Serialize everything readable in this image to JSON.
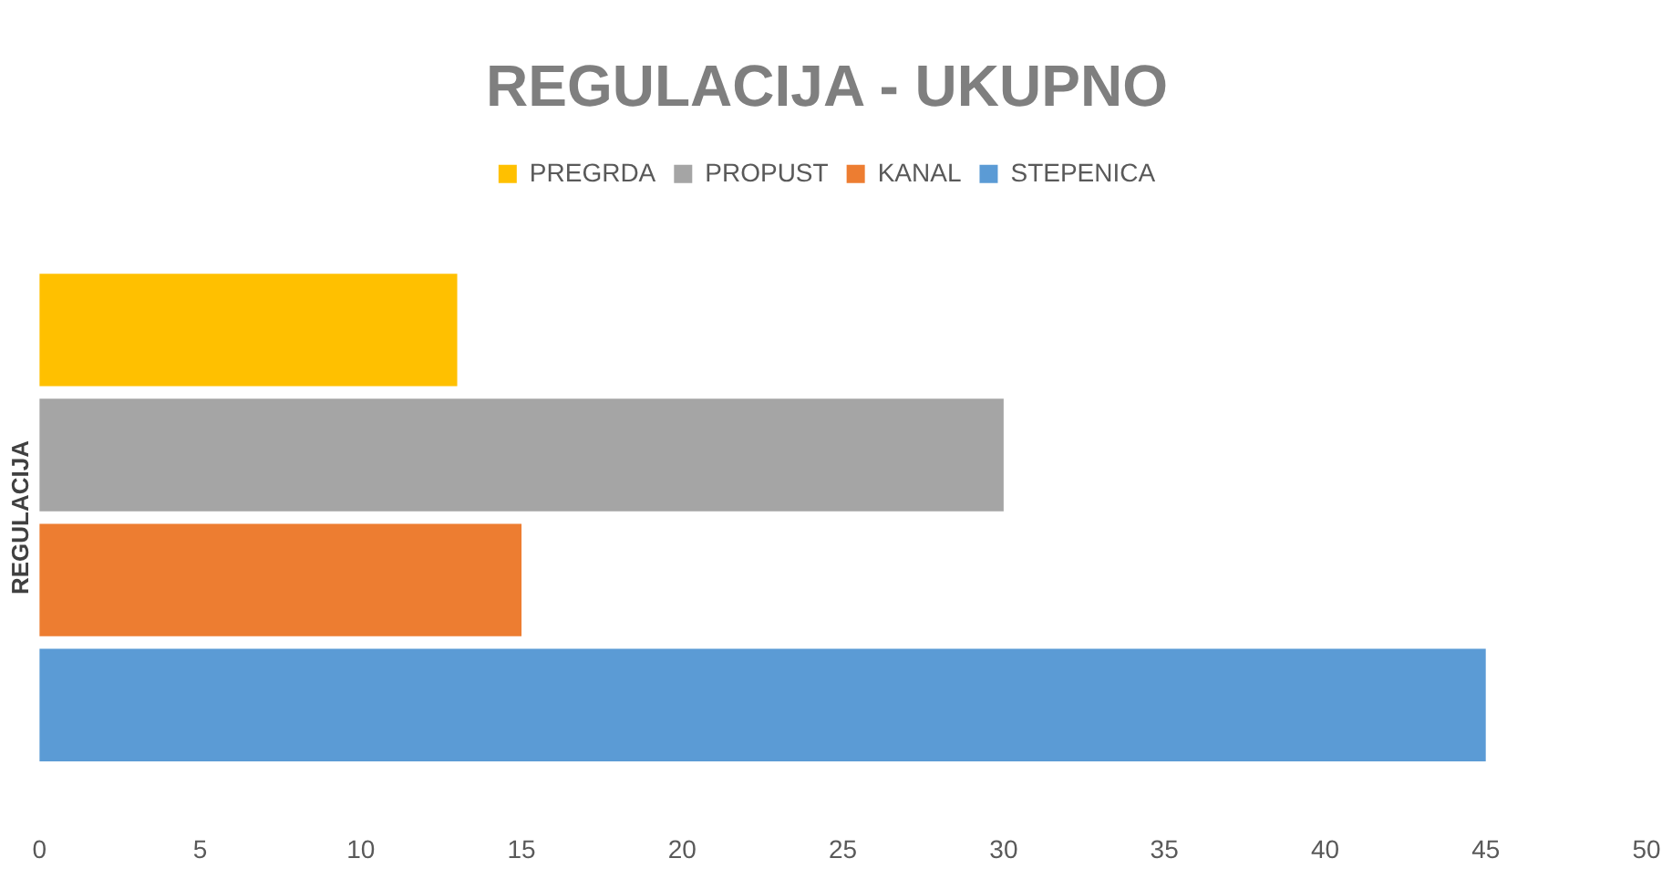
{
  "chart_data": {
    "type": "bar",
    "orientation": "horizontal",
    "title": "REGULACIJA - UKUPNO",
    "ylabel": "REGULACIJA",
    "categories": [
      null
    ],
    "series": [
      {
        "name": "PREGRDA",
        "color": "#ffc000",
        "values": [
          13
        ]
      },
      {
        "name": "PROPUST",
        "color": "#a5a5a5",
        "values": [
          30
        ]
      },
      {
        "name": "KANAL",
        "color": "#ed7d31",
        "values": [
          15
        ]
      },
      {
        "name": "STEPENICA",
        "color": "#5b9bd5",
        "values": [
          45
        ]
      }
    ],
    "xlim": [
      0,
      50
    ],
    "xticks": [
      0,
      5,
      10,
      15,
      20,
      25,
      30,
      35,
      40,
      45,
      50
    ],
    "grid": false,
    "legend": "top"
  }
}
